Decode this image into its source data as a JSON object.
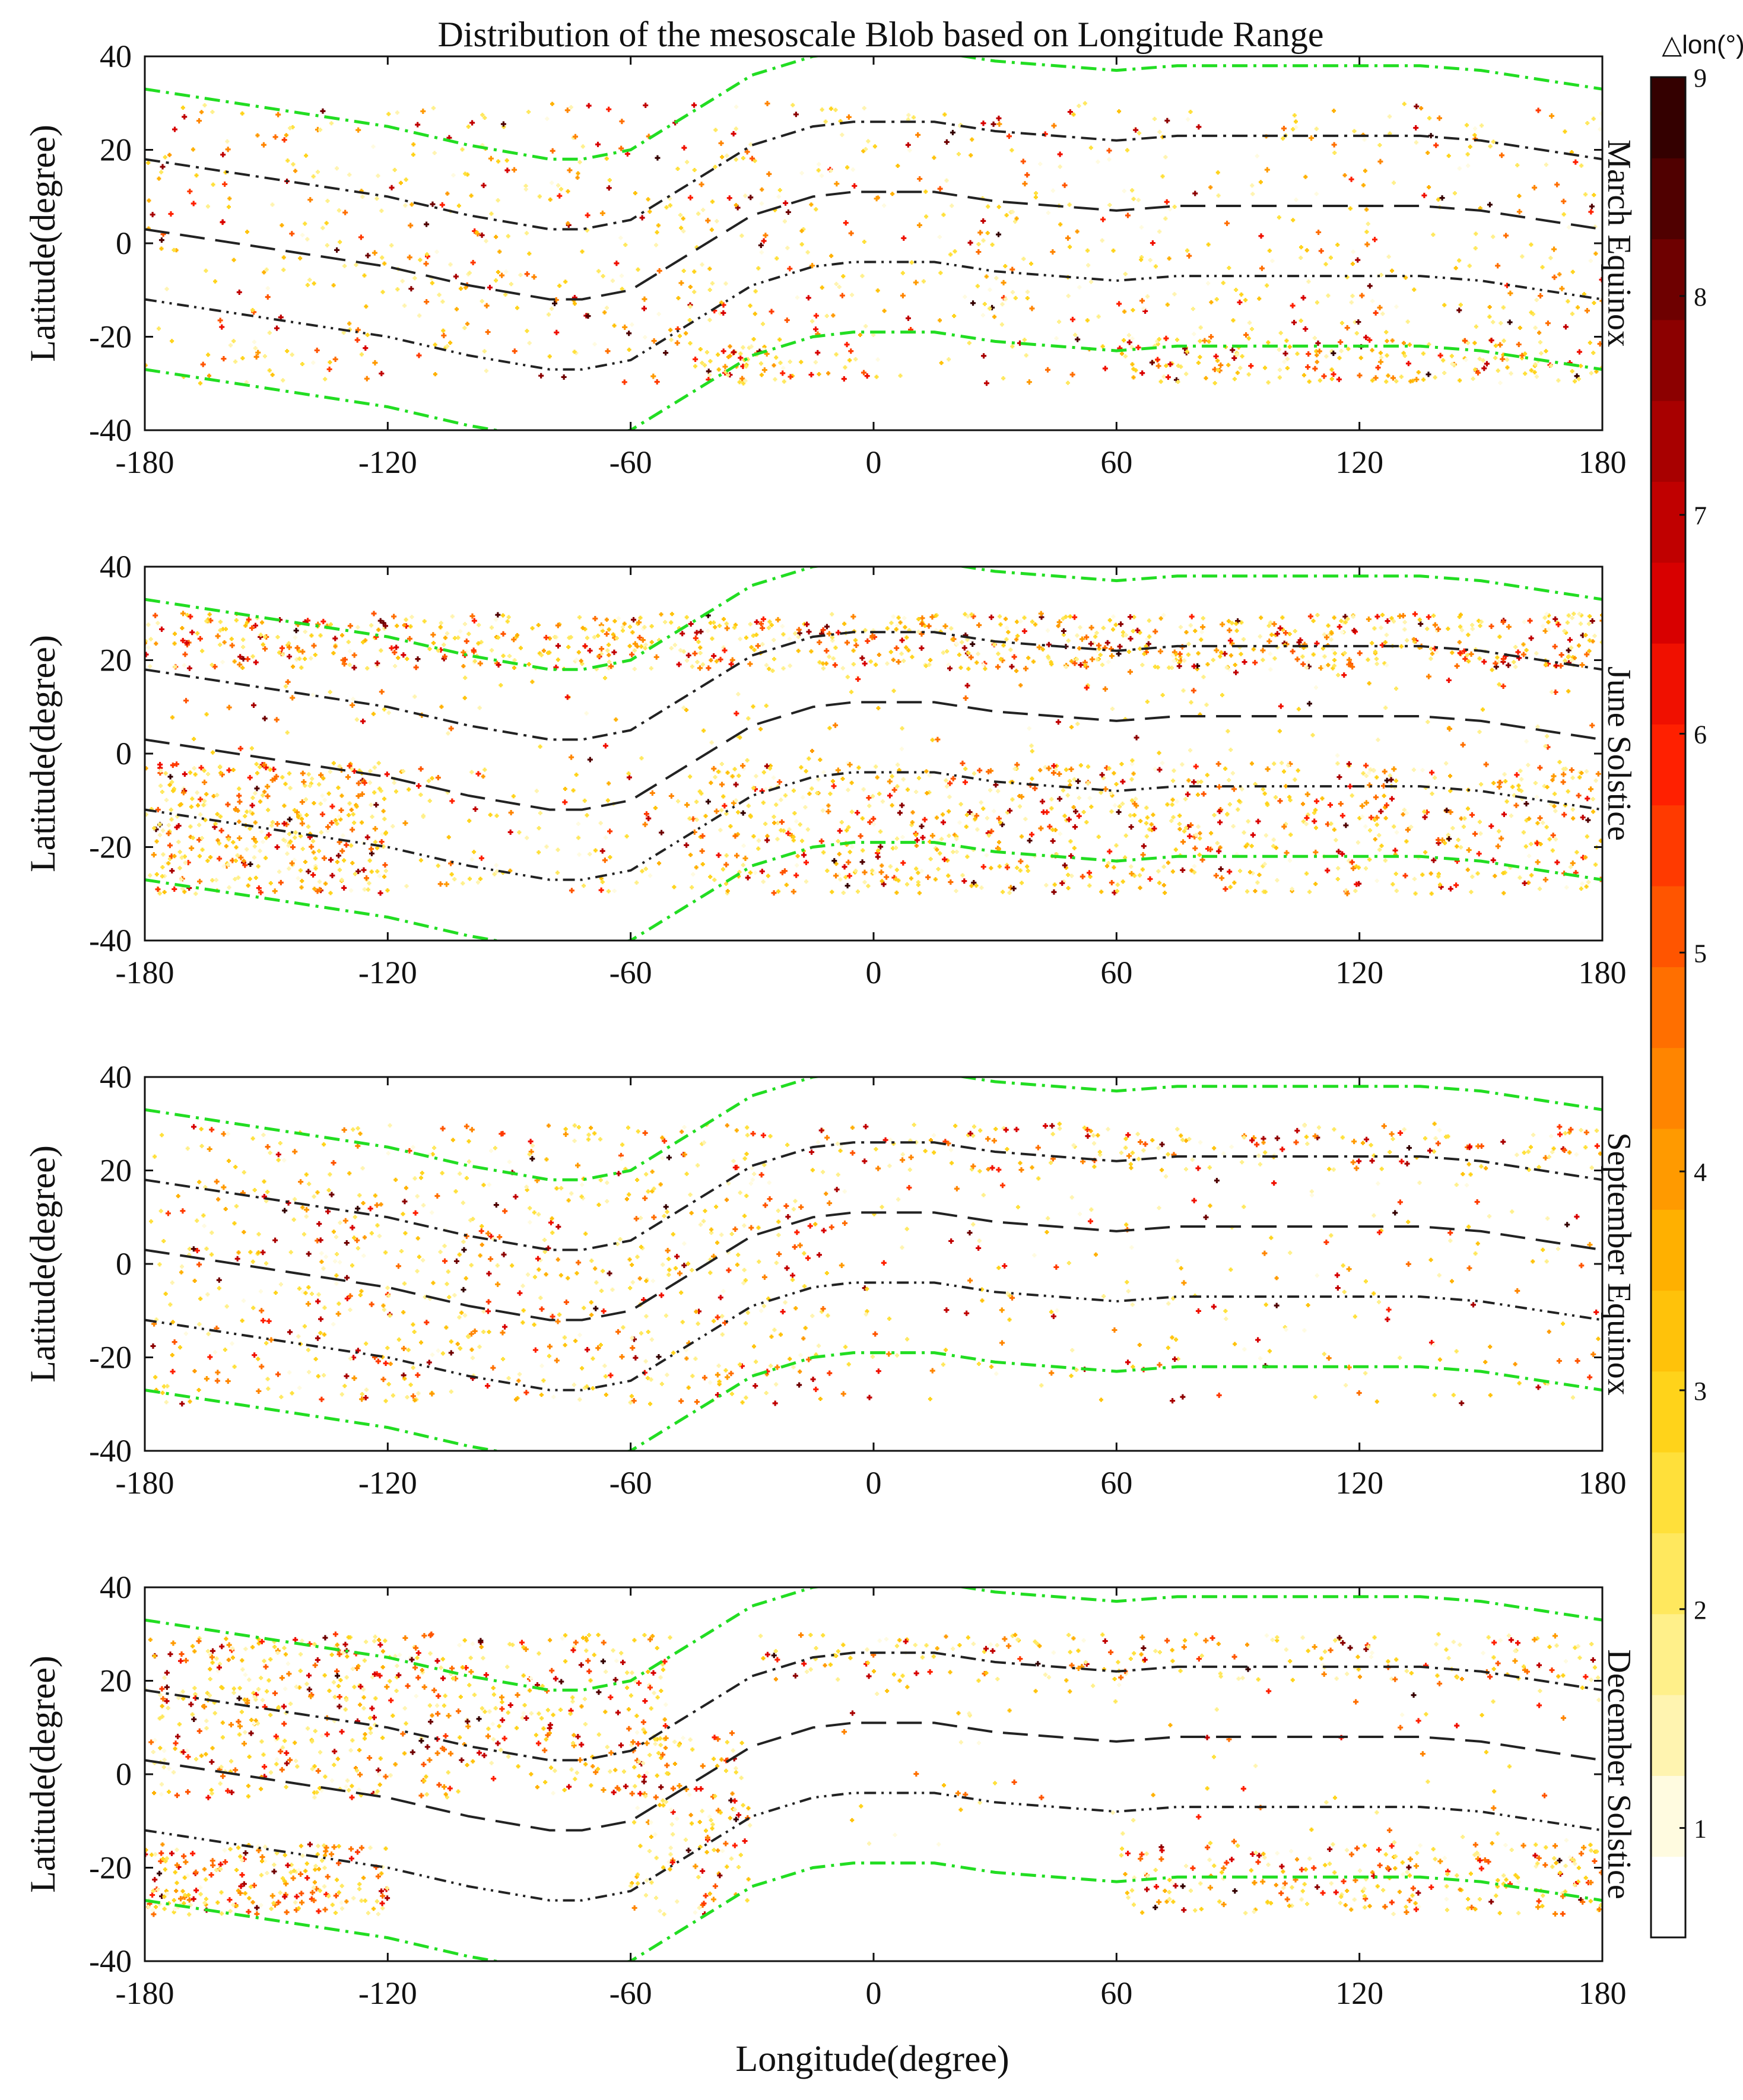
{
  "chart_data": {
    "type": "scatter",
    "title": "Distribution of the mesoscale Blob based on Longitude Range",
    "xlabel": "Longitude(degree)",
    "ylabel": "Latitude(degree)",
    "xlim": [
      -180,
      180
    ],
    "ylim": [
      -40,
      40
    ],
    "xticks": [
      "-180",
      "-120",
      "-60",
      "0",
      "60",
      "120",
      "180"
    ],
    "yticks": [
      "40",
      "20",
      "0",
      "-20",
      "-40"
    ],
    "colorbar": {
      "title": "△lon(°)",
      "range": [
        0.5,
        9
      ],
      "ticks": [
        "9",
        "8",
        "7",
        "6",
        "5",
        "4",
        "3",
        "2",
        "1"
      ],
      "colors": [
        "#ffffff",
        "#fffbe0",
        "#fff4b0",
        "#fff08a",
        "#ffe85e",
        "#ffe03a",
        "#ffd31a",
        "#ffc20a",
        "#ffb000",
        "#ff9a00",
        "#ff8500",
        "#ff6f00",
        "#ff5500",
        "#ff3a00",
        "#ff2000",
        "#f01000",
        "#d80000",
        "#c00000",
        "#a80000",
        "#8c0000",
        "#6e0000",
        "#500000",
        "#340000"
      ]
    },
    "reference_lines": [
      {
        "name": "northern anomaly crest",
        "style": "dash-dot",
        "color": "#222222",
        "x": [
          -180,
          -150,
          -120,
          -100,
          -80,
          -72,
          -60,
          -45,
          -30,
          -15,
          -5,
          5,
          15,
          30,
          45,
          60,
          75,
          90,
          105,
          120,
          135,
          150,
          165,
          180
        ],
        "y": [
          18,
          14,
          10,
          6,
          3,
          3,
          5,
          13,
          21,
          25,
          26,
          26,
          26,
          24,
          23,
          22,
          23,
          23,
          23,
          23,
          23,
          22,
          20,
          18
        ]
      },
      {
        "name": "magnetic equator",
        "style": "dashed",
        "color": "#222222",
        "x": [
          -180,
          -150,
          -120,
          -100,
          -80,
          -72,
          -60,
          -45,
          -30,
          -15,
          -5,
          5,
          15,
          30,
          45,
          60,
          75,
          90,
          105,
          120,
          135,
          150,
          165,
          180
        ],
        "y": [
          3,
          -1,
          -5,
          -9,
          -12,
          -12,
          -10,
          -2,
          6,
          10,
          11,
          11,
          11,
          9,
          8,
          7,
          8,
          8,
          8,
          8,
          8,
          7,
          5,
          3
        ]
      },
      {
        "name": "southern anomaly crest",
        "style": "dash-dot-dot",
        "color": "#222222",
        "x": [
          -180,
          -150,
          -120,
          -100,
          -80,
          -72,
          -60,
          -45,
          -30,
          -15,
          -5,
          5,
          15,
          30,
          45,
          60,
          75,
          90,
          105,
          120,
          135,
          150,
          165,
          180
        ],
        "y": [
          -12,
          -16,
          -20,
          -24,
          -27,
          -27,
          -25,
          -17,
          -9,
          -5,
          -4,
          -4,
          -4,
          -6,
          -7,
          -8,
          -7,
          -7,
          -7,
          -7,
          -7,
          -8,
          -10,
          -12
        ]
      },
      {
        "name": "northern magnetic boundary",
        "style": "dash-dot",
        "color": "#22dd22",
        "x": [
          -180,
          -150,
          -120,
          -100,
          -80,
          -72,
          -60,
          -45,
          -30,
          -15,
          -5,
          5,
          15,
          30,
          45,
          60,
          75,
          90,
          105,
          120,
          135,
          150,
          165,
          180
        ],
        "y": [
          33,
          29,
          25,
          21,
          18,
          18,
          20,
          28,
          36,
          40,
          41,
          41,
          41,
          39,
          38,
          37,
          38,
          38,
          38,
          38,
          38,
          37,
          35,
          33
        ]
      },
      {
        "name": "southern magnetic boundary",
        "style": "dash-dot",
        "color": "#22dd22",
        "x": [
          -180,
          -150,
          -120,
          -100,
          -80,
          -72,
          -60,
          -45,
          -30,
          -15,
          -5,
          5,
          15,
          30,
          45,
          60,
          75,
          90,
          105,
          120,
          135,
          150,
          165,
          180
        ],
        "y": [
          -27,
          -31,
          -35,
          -39,
          -42,
          -42,
          -40,
          -32,
          -24,
          -20,
          -19,
          -19,
          -19,
          -21,
          -22,
          -23,
          -22,
          -22,
          -22,
          -22,
          -22,
          -23,
          -25,
          -27
        ]
      }
    ],
    "panels": [
      {
        "label": "March Equinox",
        "density": [
          {
            "lon": [
              -180,
              -100
            ],
            "lat": [
              -30,
              30
            ],
            "n": 220
          },
          {
            "lon": [
              -100,
              -55
            ],
            "lat": [
              -30,
              30
            ],
            "n": 130
          },
          {
            "lon": [
              -55,
              -5
            ],
            "lat": [
              -30,
              30
            ],
            "n": 170
          },
          {
            "lon": [
              -5,
              180
            ],
            "lat": [
              -30,
              30
            ],
            "n": 480
          },
          {
            "lon": [
              60,
              180
            ],
            "lat": [
              -30,
              -20
            ],
            "n": 160
          },
          {
            "lon": [
              -45,
              -20
            ],
            "lat": [
              -30,
              -22
            ],
            "n": 50
          }
        ]
      },
      {
        "label": "June Solstice",
        "density": [
          {
            "lon": [
              -180,
              180
            ],
            "lat": [
              18,
              30
            ],
            "n": 900
          },
          {
            "lon": [
              -180,
              -120
            ],
            "lat": [
              -30,
              -2
            ],
            "n": 380
          },
          {
            "lon": [
              -45,
              180
            ],
            "lat": [
              -30,
              -2
            ],
            "n": 900
          },
          {
            "lon": [
              -180,
              180
            ],
            "lat": [
              -2,
              18
            ],
            "n": 140
          },
          {
            "lon": [
              -120,
              -45
            ],
            "lat": [
              -30,
              -2
            ],
            "n": 110
          }
        ]
      },
      {
        "label": "September Equinox",
        "density": [
          {
            "lon": [
              -180,
              -40
            ],
            "lat": [
              -30,
              30
            ],
            "n": 620
          },
          {
            "lon": [
              -40,
              -10
            ],
            "lat": [
              -30,
              30
            ],
            "n": 140
          },
          {
            "lon": [
              -10,
              180
            ],
            "lat": [
              20,
              30
            ],
            "n": 200
          },
          {
            "lon": [
              -10,
              180
            ],
            "lat": [
              -30,
              20
            ],
            "n": 220
          }
        ]
      },
      {
        "label": "December Solstice",
        "density": [
          {
            "lon": [
              -180,
              -50
            ],
            "lat": [
              -5,
              30
            ],
            "n": 620
          },
          {
            "lon": [
              -180,
              -120
            ],
            "lat": [
              -30,
              -15
            ],
            "n": 220
          },
          {
            "lon": [
              -60,
              -30
            ],
            "lat": [
              -30,
              10
            ],
            "n": 140
          },
          {
            "lon": [
              -30,
              180
            ],
            "lat": [
              20,
              30
            ],
            "n": 220
          },
          {
            "lon": [
              60,
              180
            ],
            "lat": [
              -30,
              -15
            ],
            "n": 260
          },
          {
            "lon": [
              -10,
              180
            ],
            "lat": [
              -15,
              20
            ],
            "n": 80
          }
        ]
      }
    ]
  }
}
